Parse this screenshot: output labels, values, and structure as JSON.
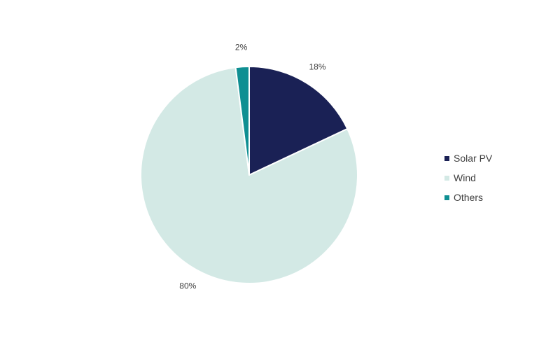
{
  "chart_data": {
    "type": "pie",
    "title": "",
    "start_angle_deg": 0,
    "direction": "clockwise",
    "slices": [
      {
        "name": "Solar PV",
        "value": 18,
        "label": "18%",
        "color": "#1a2155"
      },
      {
        "name": "Wind",
        "value": 80,
        "label": "80%",
        "color": "#d3e9e5"
      },
      {
        "name": "Others",
        "value": 2,
        "label": "2%",
        "color": "#0f8f92"
      }
    ],
    "legend_position": "right"
  }
}
